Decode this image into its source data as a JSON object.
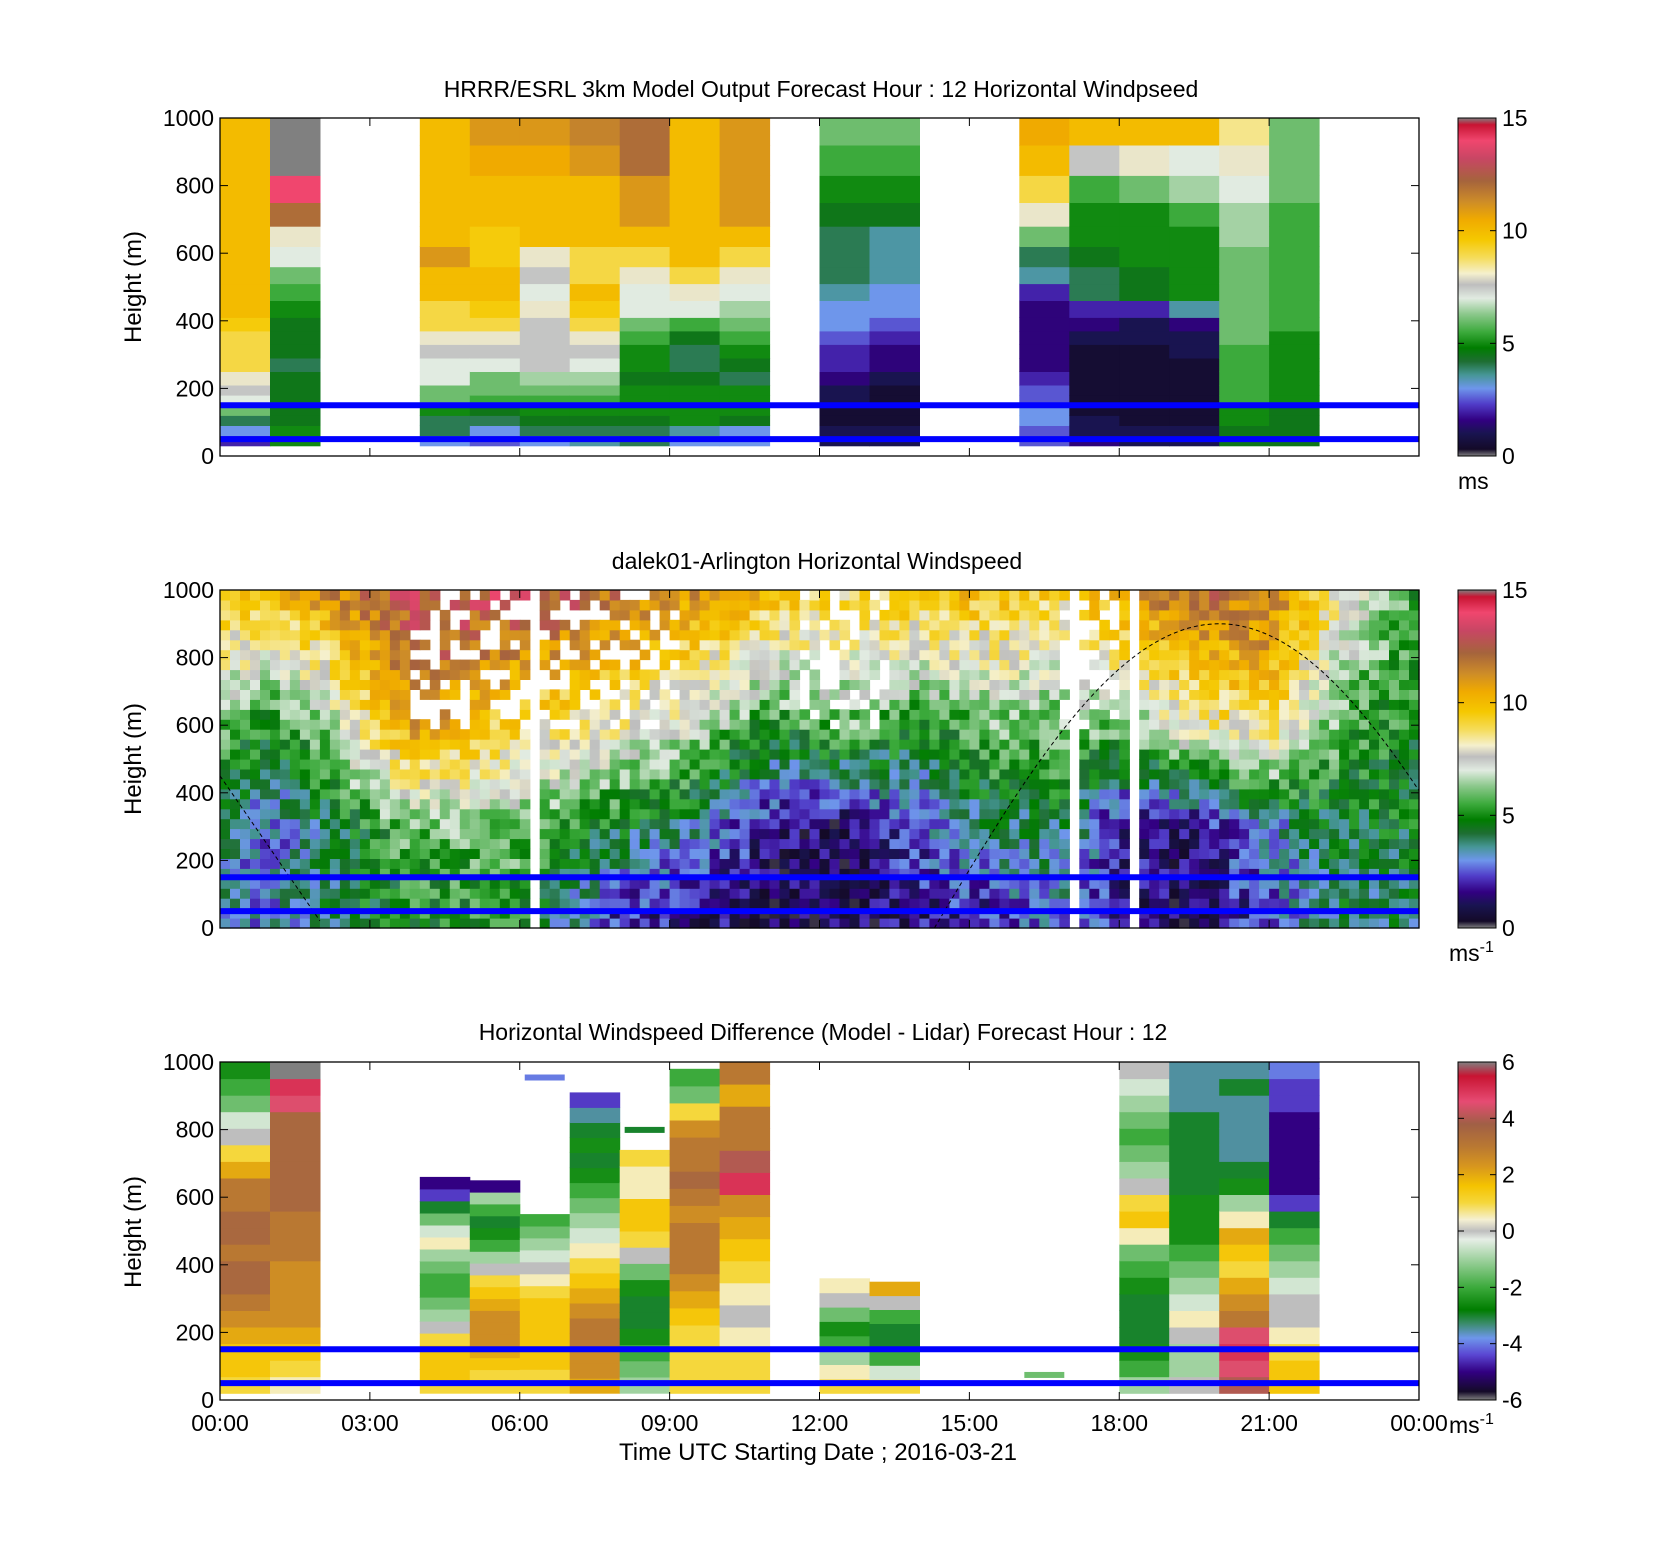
{
  "chart_data": [
    {
      "type": "heatmap",
      "title": "HRRR/ESRL 3km Model Output   Forecast Hour : 12 Horizontal Windpseed",
      "ylabel": "Height (m)",
      "xlabel": "",
      "ylim": [
        0,
        1000
      ],
      "xlim_hours": [
        0,
        24
      ],
      "yticks": [
        "0",
        "200",
        "400",
        "600",
        "800",
        "1000"
      ],
      "colorbar": {
        "range": [
          0,
          15
        ],
        "ticks": [
          "0",
          "5",
          "10",
          "15"
        ],
        "unit": "ms",
        "unit_sup": ""
      },
      "hline_heights_m": [
        50,
        150
      ],
      "time_columns_hours": [
        0,
        1,
        4,
        5,
        6,
        7,
        8,
        9,
        10,
        12,
        13,
        16,
        17,
        18,
        19,
        20,
        21
      ],
      "height_levels_m": [
        30,
        60,
        90,
        120,
        150,
        180,
        210,
        250,
        290,
        330,
        370,
        410,
        460,
        510,
        560,
        620,
        680,
        750,
        830,
        920,
        1000
      ],
      "values_ms": [
        [
          2,
          3,
          4,
          6,
          7,
          7.5,
          8,
          9,
          9,
          9,
          9.5,
          10,
          10,
          10,
          10,
          10,
          10,
          10,
          10,
          10
        ],
        [
          5,
          5,
          4.5,
          4.5,
          4.5,
          4.5,
          4.5,
          4,
          4.5,
          4.5,
          4.5,
          5,
          5.5,
          6,
          7,
          8,
          12,
          14,
          15,
          15
        ],
        [
          3,
          4,
          4,
          5,
          6,
          6,
          7,
          7,
          7.5,
          8,
          9,
          9,
          10,
          10,
          11,
          10,
          10,
          10,
          10,
          10
        ],
        [
          2.5,
          3,
          4,
          4.5,
          5.5,
          6,
          6,
          7,
          7.5,
          8,
          9,
          9.5,
          10,
          10,
          9.5,
          9.5,
          10,
          10,
          10.5,
          11
        ],
        [
          3,
          4,
          4.5,
          5,
          5.5,
          6,
          6.5,
          7.5,
          7.5,
          7.5,
          7.5,
          8,
          7,
          7.5,
          8,
          10,
          10,
          10,
          10.5,
          11
        ],
        [
          3.5,
          4,
          4.5,
          5,
          5.5,
          6,
          6.5,
          7,
          7.5,
          8,
          9,
          9.5,
          10,
          9,
          9,
          10,
          10,
          10,
          11,
          11.5
        ],
        [
          4,
          4,
          4.5,
          5,
          5,
          5,
          4.5,
          5,
          5,
          5.5,
          6,
          7,
          7,
          8,
          9,
          10,
          11,
          11,
          12,
          12
        ],
        [
          3,
          3.5,
          5,
          5,
          5,
          5,
          4.5,
          4,
          4,
          4.5,
          5.5,
          7,
          8,
          9,
          10,
          10,
          10,
          10,
          10,
          10
        ],
        [
          3,
          3,
          4.5,
          5,
          5,
          5,
          4,
          4.5,
          5,
          5.5,
          6,
          6.5,
          7,
          8,
          9,
          10,
          11,
          11,
          11,
          11
        ],
        [
          1,
          1,
          0.5,
          0.5,
          1,
          1,
          1.5,
          2,
          2,
          2.5,
          3,
          3,
          3.5,
          4,
          4,
          4,
          4.5,
          5,
          5.5,
          6
        ],
        [
          1,
          1,
          0.5,
          0.5,
          0.5,
          0.5,
          1,
          1.5,
          1.5,
          2,
          2.5,
          3,
          3,
          3.5,
          3.5,
          3.5,
          4.5,
          5,
          5.5,
          6
        ],
        [
          2.5,
          2.5,
          3,
          3,
          2.5,
          2.5,
          2,
          1.5,
          1.5,
          1.5,
          1.5,
          1.5,
          2,
          3.5,
          4,
          6,
          8,
          9,
          10,
          10.5
        ],
        [
          1.5,
          1,
          1,
          0.5,
          0.5,
          0.5,
          0.5,
          0.5,
          0.5,
          1,
          1.5,
          2,
          4,
          4,
          4.5,
          5,
          5,
          5.5,
          7.5,
          10
        ],
        [
          1,
          1,
          0.5,
          0.5,
          0.5,
          0.5,
          0.5,
          0.5,
          0.5,
          1,
          1,
          2,
          4.5,
          4.5,
          5,
          5,
          5,
          6,
          8,
          10
        ],
        [
          1,
          1,
          0.5,
          0.5,
          0.5,
          0.5,
          0.5,
          0.5,
          1,
          1,
          1.5,
          3.5,
          5,
          5,
          5,
          5,
          5.5,
          6.5,
          7,
          10
        ],
        [
          4.5,
          4.5,
          5,
          5,
          5.5,
          5.5,
          5.5,
          5.5,
          5.5,
          6,
          6,
          6,
          6,
          6,
          6,
          6.5,
          6.5,
          7,
          8,
          8.5
        ],
        [
          4.5,
          4.5,
          4.5,
          4.5,
          5,
          5,
          5,
          5,
          5,
          5,
          5.5,
          5.5,
          5.5,
          5.5,
          5.5,
          5.5,
          5.5,
          6,
          6,
          6
        ]
      ]
    },
    {
      "type": "heatmap",
      "title": "dalek01-Arlington  Horizontal Windspeed",
      "ylabel": "Height (m)",
      "xlabel": "",
      "ylim": [
        0,
        1000
      ],
      "xlim_hours": [
        0,
        24
      ],
      "yticks": [
        "0",
        "200",
        "400",
        "600",
        "800",
        "1000"
      ],
      "colorbar": {
        "range": [
          0,
          15
        ],
        "ticks": [
          "0",
          "5",
          "10",
          "15"
        ],
        "unit": "ms",
        "unit_sup": "-1"
      },
      "hline_heights_m": [
        50,
        150
      ],
      "overlay_curve": "dashed black curve: low near 02:00 and 14:30, peak ~900 m near 20:00",
      "profile_keyframes": [
        {
          "t": 0.0,
          "top": 10,
          "mid": 6,
          "low": 4,
          "surf": 3
        },
        {
          "t": 1.0,
          "top": 10,
          "mid": 5,
          "low": 2.5,
          "surf": 3
        },
        {
          "t": 2.0,
          "top": 11,
          "mid": 6,
          "low": 4,
          "surf": 4
        },
        {
          "t": 3.0,
          "top": 12,
          "mid": 9,
          "low": 5,
          "surf": 4.5
        },
        {
          "t": 4.0,
          "top": 13,
          "mid": 11,
          "low": 6,
          "surf": 5
        },
        {
          "t": 6.0,
          "top": 13,
          "mid": 9,
          "low": 6,
          "surf": 5
        },
        {
          "t": 8.0,
          "top": 12,
          "mid": 8,
          "low": 4.5,
          "surf": 2
        },
        {
          "t": 9.5,
          "top": 11,
          "mid": 7,
          "low": 3.5,
          "surf": 1.5
        },
        {
          "t": 11.0,
          "top": 10,
          "mid": 5,
          "low": 1.5,
          "surf": 1
        },
        {
          "t": 12.5,
          "top": 9,
          "mid": 6,
          "low": 1,
          "surf": 1
        },
        {
          "t": 14.0,
          "top": 10,
          "mid": 5,
          "low": 2.5,
          "surf": 1.5
        },
        {
          "t": 15.5,
          "top": 10,
          "mid": 6,
          "low": 4,
          "surf": 2
        },
        {
          "t": 17.0,
          "top": 9,
          "mid": 6,
          "low": 4,
          "surf": 3
        },
        {
          "t": 18.0,
          "top": 11,
          "mid": 6,
          "low": 1.5,
          "surf": 1.5
        },
        {
          "t": 19.5,
          "top": 12,
          "mid": 8,
          "low": 1.5,
          "surf": 1
        },
        {
          "t": 21.0,
          "top": 12,
          "mid": 9,
          "low": 3,
          "surf": 2.5
        },
        {
          "t": 22.5,
          "top": 8,
          "mid": 5.5,
          "low": 4.5,
          "surf": 4
        },
        {
          "t": 24.0,
          "top": 5,
          "mid": 5,
          "low": 4.5,
          "surf": 4
        }
      ]
    },
    {
      "type": "heatmap",
      "title": "Horizontal Windspeed Difference (Model - Lidar) Forecast Hour : 12",
      "ylabel": "Height (m)",
      "xlabel": "Time UTC  Starting Date ; 2016-03-21",
      "ylim": [
        0,
        1000
      ],
      "xlim_hours": [
        0,
        24
      ],
      "xticks": [
        "00:00",
        "03:00",
        "06:00",
        "09:00",
        "12:00",
        "15:00",
        "18:00",
        "21:00",
        "00:00"
      ],
      "yticks": [
        "0",
        "200",
        "400",
        "600",
        "800",
        "1000"
      ],
      "colorbar": {
        "range": [
          -6,
          6
        ],
        "ticks": [
          "-6",
          "-4",
          "-2",
          "0",
          "2",
          "4",
          "6"
        ],
        "unit": "ms",
        "unit_sup": "-1"
      },
      "hline_heights_m": [
        50,
        150
      ],
      "columns": [
        {
          "t": 0,
          "bot": 20,
          "top": 1000,
          "vals": [
            1,
            1.5,
            1.5,
            2,
            2.5,
            3,
            3.5,
            3.5,
            3,
            3.5,
            3.5,
            3,
            3,
            2,
            1,
            0,
            -0.5,
            -1.5,
            -2,
            -2.5
          ]
        },
        {
          "t": 1,
          "bot": 20,
          "top": 1000,
          "vals": [
            0.5,
            1,
            1.5,
            2,
            2.5,
            2.5,
            2.5,
            2.5,
            3,
            3,
            3,
            3.5,
            3.5,
            3.5,
            3.5,
            3.5,
            3.5,
            4.5,
            5,
            6
          ]
        },
        {
          "t": 4,
          "bot": 20,
          "top": 660,
          "vals": [
            1,
            1.5,
            1.5,
            1.5,
            1,
            0,
            -1,
            -1.5,
            -2,
            -2,
            -1.5,
            -1,
            0.5,
            -0.5,
            -1.5,
            -3,
            -4.5,
            -5
          ]
        },
        {
          "t": 5,
          "bot": 20,
          "top": 650,
          "vals": [
            1,
            1,
            1.5,
            2,
            2.5,
            2.5,
            2.5,
            2,
            1.5,
            1,
            0,
            -1,
            -2,
            -2.5,
            -3,
            -2,
            -1,
            -5
          ]
        },
        {
          "t": 6,
          "bot": 20,
          "top": 550,
          "vals": [
            1,
            1,
            1.5,
            1.5,
            1.5,
            1.5,
            1.5,
            1.5,
            1,
            0.5,
            0,
            -0.5,
            -1,
            -1.5,
            -2
          ]
        },
        {
          "t": 7,
          "bot": 20,
          "top": 910,
          "vals": [
            2,
            2.5,
            2.5,
            3,
            3,
            2.5,
            2,
            1.5,
            1,
            0.5,
            -0.5,
            -1,
            -1.5,
            -2,
            -2.5,
            -3,
            -2.5,
            -3,
            -3.5,
            -4.5
          ]
        },
        {
          "t": 8,
          "bot": 20,
          "top": 740,
          "vals": [
            -1,
            -1.5,
            -2,
            -2.5,
            -3,
            -3,
            -2.5,
            -1.5,
            0,
            1,
            1.5,
            1.5,
            0.5,
            0.5,
            1
          ]
        },
        {
          "t": 9,
          "bot": 20,
          "top": 980,
          "vals": [
            1,
            1,
            1,
            1,
            1.5,
            2,
            2.5,
            3,
            3,
            3,
            2.5,
            3,
            3.5,
            3,
            3,
            2.5,
            1,
            -1.5,
            -2
          ]
        },
        {
          "t": 10,
          "bot": 20,
          "top": 1000,
          "vals": [
            1,
            1,
            0.5,
            0,
            0.5,
            1,
            1.5,
            2,
            2.5,
            5,
            4,
            3,
            3,
            2,
            3
          ]
        },
        {
          "t": 12,
          "bot": 20,
          "top": 360,
          "vals": [
            1,
            0.5,
            -1,
            -2,
            -2.5,
            -1.5,
            0,
            0.5
          ]
        },
        {
          "t": 13,
          "bot": 20,
          "top": 350,
          "vals": [
            1,
            -0.5,
            -2,
            -3,
            -3,
            -2,
            0,
            2
          ]
        },
        {
          "t": 18,
          "bot": 20,
          "top": 1000,
          "vals": [
            -1,
            -2,
            -2.5,
            -3,
            -3,
            -3,
            -2.5,
            -2,
            -1.5,
            0.5,
            1.5,
            1,
            0,
            -1,
            -1.5,
            -2,
            -1.5,
            -1,
            -0.5,
            0
          ]
        },
        {
          "t": 19,
          "bot": 20,
          "top": 1000,
          "vals": [
            0,
            -1,
            -1,
            0,
            0.5,
            -0.5,
            -1,
            -1.5,
            -2,
            -2.5,
            -2.5,
            -2.5,
            -3,
            -3,
            -3,
            -3,
            -3,
            -3.5,
            -3.5,
            -3.5
          ]
        },
        {
          "t": 20,
          "bot": 20,
          "top": 1000,
          "vals": [
            4,
            4.5,
            5,
            4.5,
            3,
            2.5,
            2,
            1,
            1.5,
            2,
            0.5,
            -1,
            -2.5,
            -3,
            -3.5,
            -3.5,
            -3.5,
            -3.5,
            -3,
            -3.5
          ]
        },
        {
          "t": 21,
          "bot": 20,
          "top": 1000,
          "vals": [
            1.5,
            1.5,
            1,
            0.5,
            0,
            0,
            -0.5,
            -1,
            -1.5,
            -2,
            -3,
            -4.5,
            -5,
            -5,
            -5,
            -5,
            -5,
            -4.5,
            -4.5,
            -4
          ]
        }
      ],
      "small_segments": [
        {
          "t0": 6.0,
          "t1": 7.0,
          "h": 955,
          "v": -4
        },
        {
          "t0": 16.0,
          "t1": 17.0,
          "h": 75,
          "v": -1.5
        },
        {
          "t0": 8.0,
          "t1": 9.0,
          "h": 800,
          "v": -3
        }
      ]
    }
  ]
}
